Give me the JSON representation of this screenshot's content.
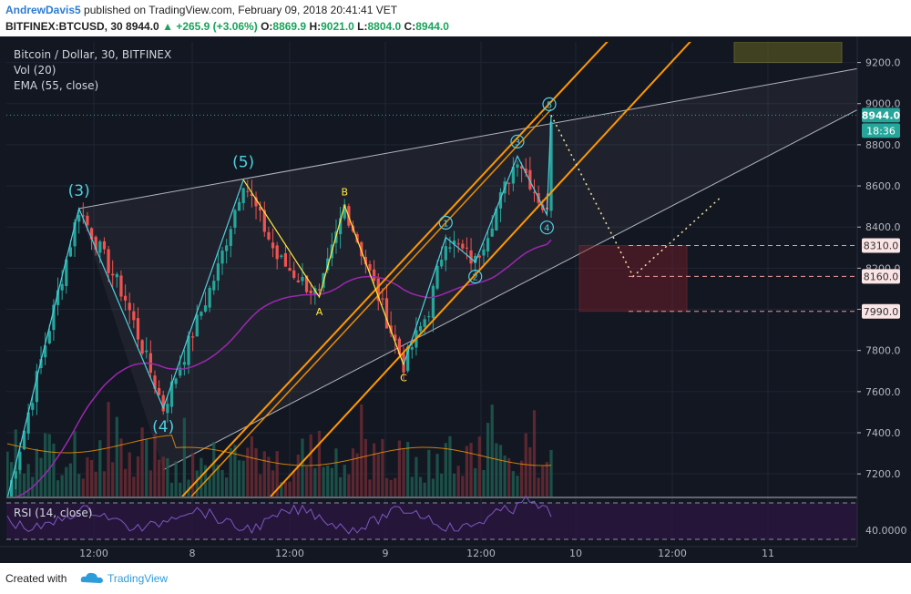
{
  "header": {
    "author": "AndrewDavis5",
    "published": "published on TradingView.com, February 09, 2018 20:41:41 VET",
    "symbol": "BITFINEX:BTCUSD, 30",
    "close_value": "8944.0",
    "change": "+265.9 (+3.06%)",
    "o_label": "O:",
    "o_value": "8869.9",
    "h_label": "H:",
    "h_value": "9021.0",
    "l_label": "L:",
    "l_value": "8804.0",
    "c_label": "C:",
    "c_value": "8944.0"
  },
  "legend": {
    "title": "Bitcoin / Dollar, 30, BITFINEX",
    "vol": "Vol (20)",
    "ema": "EMA (55, close)",
    "rsi": "RSI (14, close)"
  },
  "footer": {
    "created_with": "Created with",
    "brand": "TradingView",
    "logo_icon": "tradingview-cloud-icon"
  },
  "colors": {
    "background": "#131722",
    "up": "#26a69a",
    "down": "#ef5350",
    "ema": "#9c27b0",
    "channel": "#ff9800",
    "wave": "#4dd0e1",
    "abc": "#ffeb3b",
    "target_box": "#7a1e2c",
    "top_box": "#6b6b1f"
  },
  "chart_data": {
    "type": "candlestick",
    "title": "Bitcoin / Dollar, 30, BITFINEX",
    "y_ticks": [
      7200,
      7400,
      7600,
      7800,
      8000,
      8200,
      8400,
      8600,
      8800,
      9000,
      9200
    ],
    "y_tick_labels": [
      "7200.0",
      "7400.0",
      "7600.0",
      "7800.0",
      "8000.0",
      "8200.0",
      "8400.0",
      "8600.0",
      "8800.0",
      "9000.0",
      "9200.0"
    ],
    "ylim": [
      7090,
      9300
    ],
    "x_tick_labels": [
      "12:00",
      "8",
      "12:00",
      "9",
      "12:00",
      "10",
      "12:00",
      "11"
    ],
    "price_labels": [
      {
        "value": 8944,
        "text": "8944.0",
        "kind": "last"
      },
      {
        "text": "18:36",
        "kind": "countdown"
      },
      {
        "value": 8310,
        "text": "8310.0",
        "kind": "level"
      },
      {
        "value": 8160,
        "text": "8160.0",
        "kind": "level"
      },
      {
        "value": 7990,
        "text": "7990.0",
        "kind": "level"
      }
    ],
    "wave_labels_major": [
      {
        "text": "(3)",
        "price": 8490
      },
      {
        "text": "(5)",
        "price": 8630
      },
      {
        "text": "(4)",
        "price": 7520
      }
    ],
    "wave_labels_abc": [
      {
        "text": "B",
        "price": 8505
      },
      {
        "text": "A",
        "price": 8060
      },
      {
        "text": "C",
        "price": 7730
      }
    ],
    "wave_labels_minor": [
      {
        "text": "1",
        "price": 8350
      },
      {
        "text": "2",
        "price": 8230
      },
      {
        "text": "3",
        "price": 8745
      },
      {
        "text": "4",
        "price": 8460
      },
      {
        "text": "5",
        "price": 8944
      }
    ],
    "projection": [
      {
        "price": 8944
      },
      {
        "price": 8160
      },
      {
        "price": 8540
      }
    ],
    "rsi": {
      "label": "RSI (14, close)",
      "tick": "40.0000"
    }
  }
}
